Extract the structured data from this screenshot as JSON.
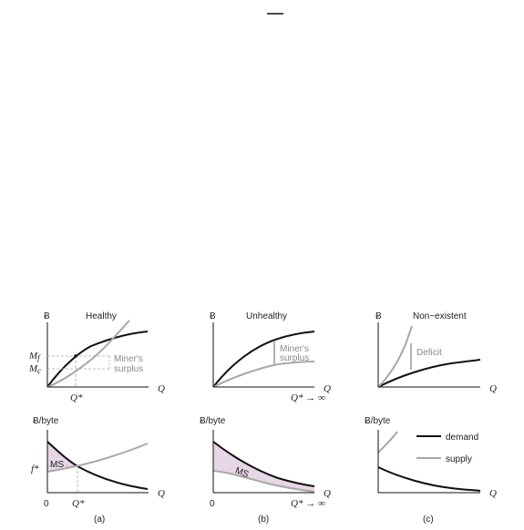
{
  "top_mark": "—",
  "panels": [
    {
      "id": "a",
      "caption": "(a)",
      "title": "Healthy",
      "top_ylabel": "Ƀ",
      "top_xlabel": "Q",
      "bottom_ylabel": "Ƀ/byte",
      "bottom_xlabel": "Q",
      "top_xtick": "Q*",
      "bottom_xtick": "Q*",
      "bottom_origin": "0",
      "mf_label": "M",
      "mf_sub": "f",
      "mc_label": "M",
      "mc_sub": "c",
      "fstar_label": "f*",
      "annotation": "Miner's",
      "annotation2": "surplus",
      "ms_label": "MS"
    },
    {
      "id": "b",
      "caption": "(b)",
      "title": "Unhealthy",
      "top_ylabel": "Ƀ",
      "top_xlabel": "Q",
      "bottom_ylabel": "Ƀ/byte",
      "bottom_xlabel": "Q",
      "top_xtick": "Q* → ∞",
      "bottom_xtick": "Q* → ∞",
      "bottom_origin": "0",
      "annotation": "Miner's",
      "annotation2": "surplus",
      "ms_label": "MS"
    },
    {
      "id": "c",
      "caption": "(c)",
      "title": "Non−existent",
      "top_ylabel": "Ƀ",
      "top_xlabel": "Q",
      "bottom_ylabel": "Ƀ/byte",
      "bottom_xlabel": "Q",
      "annotation": "Deficit"
    }
  ],
  "legend": {
    "demand": "demand",
    "supply": "supply"
  },
  "colors": {
    "demand": "#111111",
    "supply": "#a8a8a8",
    "shade": "#e6d6e6",
    "annotation": "#8a8a8a"
  }
}
